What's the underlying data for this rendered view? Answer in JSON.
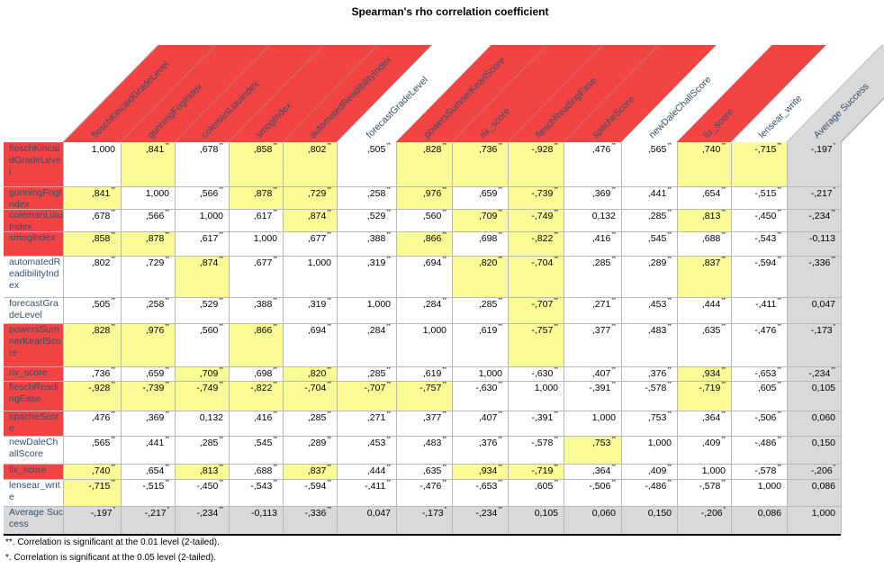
{
  "chart_data": {
    "type": "table",
    "title": "Spearman's rho correlation coefficient",
    "labels": [
      "fleschKincaidGradeLevel",
      "gunningFogIndex",
      "colemanLiauIndex",
      "smogIndex",
      "automatedReadibilityIndex",
      "forecastGradeLevel",
      "powersSumnerKearlScore",
      "rix_score",
      "fleschReadingEase",
      "spacheScore",
      "newDaleChallScore",
      "lix_score",
      "lensear_write",
      "Average Success"
    ],
    "row_labels": [
      "fleschKincaidGradeLevel",
      "gunningFogIndex",
      "colemanLiauIndex",
      "smogIndex",
      "automatedReadibilityIndex",
      "forecastGradeLevel",
      "powersSumnerKearlScore",
      "rix_score",
      "fleschReadingEase",
      "spacheScore",
      "newDaleChallScore",
      "lix_score",
      "lensear_write",
      "Average Success"
    ],
    "cells": [
      [
        "1,000",
        ",841**",
        ",678**",
        ",858**",
        ",802**",
        ",505**",
        ",828**",
        ",736**",
        "-,928**",
        ",476**",
        ",565**",
        ",740**",
        "-,715**",
        "-,197*"
      ],
      [
        ",841**",
        "1,000",
        ",566**",
        ",878**",
        ",729**",
        ",258**",
        ",976**",
        ",659**",
        "-,739**",
        ",369**",
        ",441**",
        ",654**",
        "-,515**",
        "-,217*"
      ],
      [
        ",678**",
        ",566**",
        "1,000",
        ",617**",
        ",874**",
        ",529**",
        ",560**",
        ",709**",
        "-,749**",
        "0,132",
        ",285**",
        ",813**",
        "-,450**",
        "-,234**"
      ],
      [
        ",858**",
        ",878**",
        ",617**",
        "1,000",
        ",677**",
        ",388**",
        ",866**",
        ",698**",
        "-,822**",
        ",416**",
        ",545**",
        ",688**",
        "-,543**",
        "-0,113"
      ],
      [
        ",802**",
        ",729**",
        ",874**",
        ",677**",
        "1,000",
        ",319**",
        ",694**",
        ",820**",
        "-,704**",
        ",285**",
        ",289**",
        ",837**",
        "-,594**",
        "-,336**"
      ],
      [
        ",505**",
        ",258**",
        ",529**",
        ",388**",
        ",319**",
        "1,000",
        ",284**",
        ",285**",
        "-,707**",
        ",271**",
        ",453**",
        ",444**",
        "-,411**",
        "0,047"
      ],
      [
        ",828**",
        ",976**",
        ",560**",
        ",866**",
        ",694**",
        ",284**",
        "1,000",
        ",619**",
        "-,757**",
        ",377**",
        ",483**",
        ",635**",
        "-,476**",
        "-,173*"
      ],
      [
        ",736**",
        ",659**",
        ",709**",
        ",698**",
        ",820**",
        ",285**",
        ",619**",
        "1,000",
        "-,630**",
        ",407**",
        ",376**",
        ",934**",
        "-,653**",
        "-,234**"
      ],
      [
        "-,928**",
        "-,739**",
        "-,749**",
        "-,822**",
        "-,704**",
        "-,707**",
        "-,757**",
        "-,630**",
        "1,000",
        "-,391**",
        "-,578**",
        "-,719**",
        ",605**",
        "0,105"
      ],
      [
        ",476**",
        ",369**",
        "0,132",
        ",416**",
        ",285**",
        ",271**",
        ",377**",
        ",407**",
        "-,391**",
        "1,000",
        ",753**",
        ",364**",
        "-,506**",
        "0,060"
      ],
      [
        ",565**",
        ",441**",
        ",285**",
        ",545**",
        ",289**",
        ",453**",
        ",483**",
        ",376**",
        "-,578**",
        ",753**",
        "1,000",
        ",409**",
        "-,486**",
        "0,150"
      ],
      [
        ",740**",
        ",654**",
        ",813**",
        ",688**",
        ",837**",
        ",444**",
        ",635**",
        ",934**",
        "-,719**",
        ",364**",
        ",409**",
        "1,000",
        "-,578**",
        "-,206*"
      ],
      [
        "-,715**",
        "-,515**",
        "-,450**",
        "-,543**",
        "-,594**",
        "-,411**",
        "-,476**",
        "-,653**",
        ",605**",
        "-,506**",
        "-,486**",
        "-,578**",
        "1,000",
        "0,086"
      ],
      [
        "-,197*",
        "-,217*",
        "-,234**",
        "-0,113",
        "-,336**",
        "0,047",
        "-,173*",
        "-,234**",
        "0,105",
        "0,060",
        "0,150",
        "-,206*",
        "0,086",
        "1,000"
      ]
    ],
    "highlight": [
      [
        0,
        1
      ],
      [
        0,
        3
      ],
      [
        0,
        4
      ],
      [
        0,
        6
      ],
      [
        0,
        7
      ],
      [
        0,
        8
      ],
      [
        0,
        11
      ],
      [
        0,
        12
      ],
      [
        1,
        0
      ],
      [
        1,
        3
      ],
      [
        1,
        4
      ],
      [
        1,
        6
      ],
      [
        1,
        8
      ],
      [
        2,
        4
      ],
      [
        2,
        7
      ],
      [
        2,
        8
      ],
      [
        2,
        11
      ],
      [
        3,
        0
      ],
      [
        3,
        1
      ],
      [
        3,
        6
      ],
      [
        3,
        8
      ],
      [
        4,
        2
      ],
      [
        4,
        7
      ],
      [
        4,
        8
      ],
      [
        4,
        11
      ],
      [
        5,
        8
      ],
      [
        6,
        0
      ],
      [
        6,
        1
      ],
      [
        6,
        3
      ],
      [
        6,
        8
      ],
      [
        7,
        2
      ],
      [
        7,
        4
      ],
      [
        7,
        11
      ],
      [
        8,
        0
      ],
      [
        8,
        1
      ],
      [
        8,
        2
      ],
      [
        8,
        3
      ],
      [
        8,
        4
      ],
      [
        8,
        5
      ],
      [
        8,
        6
      ],
      [
        8,
        11
      ],
      [
        10,
        9
      ],
      [
        11,
        0
      ],
      [
        11,
        2
      ],
      [
        11,
        4
      ],
      [
        11,
        7
      ],
      [
        11,
        8
      ],
      [
        12,
        0
      ]
    ],
    "red_headers": [
      0,
      1,
      2,
      3,
      4,
      6,
      7,
      8,
      9,
      11
    ],
    "red_rows": [
      0,
      1,
      2,
      3,
      6,
      7,
      8,
      9,
      11
    ],
    "footnotes": [
      "**. Correlation is significant at the 0.01 level (2-tailed).",
      "*. Correlation is significant at the 0.05 level (2-tailed)."
    ],
    "colors": {
      "red": "#f44343",
      "yellow": "#fafa96",
      "gray": "#d9d9d9",
      "header_text": "#2f4f6f"
    }
  }
}
